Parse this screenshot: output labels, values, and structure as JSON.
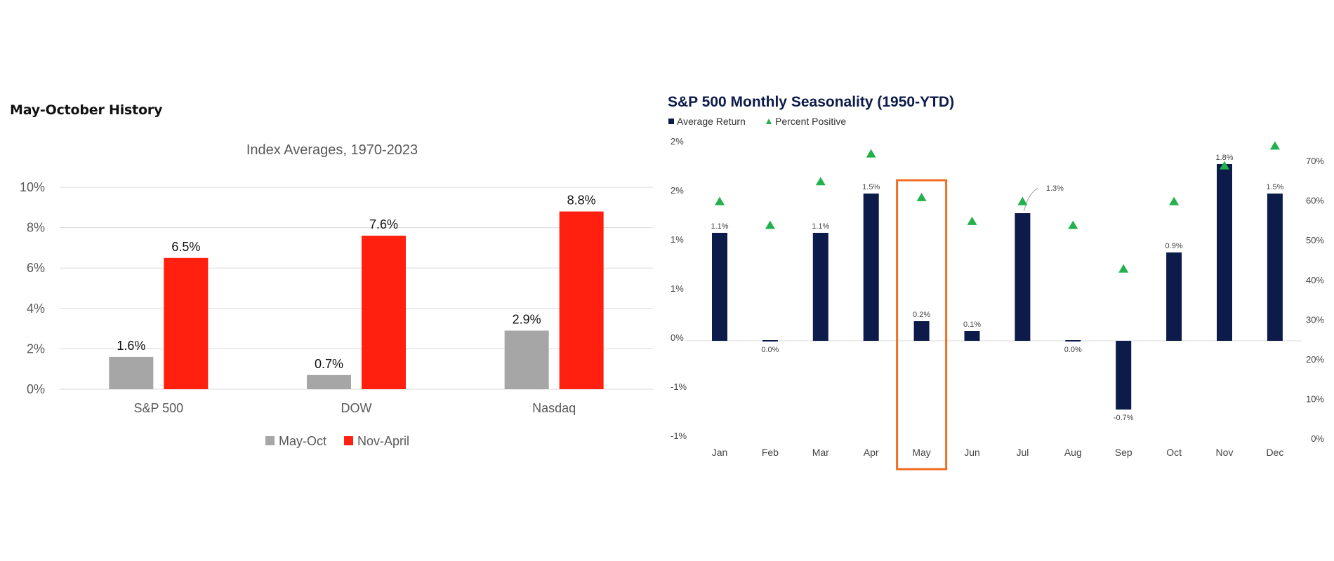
{
  "page": {
    "heading": "May-October History"
  },
  "chart_data": [
    {
      "type": "bar",
      "title": "Index Averages, 1970-2023",
      "categories": [
        "S&P 500",
        "DOW",
        "Nasdaq"
      ],
      "series": [
        {
          "name": "May-Oct",
          "values": [
            1.6,
            0.7,
            2.9
          ],
          "labels": [
            "1.6%",
            "0.7%",
            "2.9%"
          ],
          "color": "#a6a6a6"
        },
        {
          "name": "Nov-April",
          "values": [
            6.5,
            7.6,
            8.8
          ],
          "labels": [
            "6.5%",
            "7.6%",
            "8.8%"
          ],
          "color": "#ff2010"
        }
      ],
      "ylim": [
        0,
        10
      ],
      "yticks": [
        0,
        2,
        4,
        6,
        8,
        10
      ],
      "ytick_labels": [
        "0%",
        "2%",
        "4%",
        "6%",
        "8%",
        "10%"
      ],
      "grid": true,
      "legend_position": "bottom",
      "xlabel": "",
      "ylabel": ""
    },
    {
      "type": "bar",
      "title": "S&P 500 Monthly Seasonality (1950-YTD)",
      "categories": [
        "Jan",
        "Feb",
        "Mar",
        "Apr",
        "May",
        "Jun",
        "Jul",
        "Aug",
        "Sep",
        "Oct",
        "Nov",
        "Dec"
      ],
      "series": [
        {
          "name": "Average Return",
          "kind": "bar",
          "axis": "left",
          "color": "#0d1b4a",
          "values": [
            1.1,
            0.0,
            1.1,
            1.5,
            0.2,
            0.1,
            1.3,
            0.0,
            -0.7,
            0.9,
            1.8,
            1.5
          ],
          "labels": [
            "1.1%",
            "0.0%",
            "1.1%",
            "1.5%",
            "0.2%",
            "0.1%",
            "1.3%",
            "0.0%",
            "-0.7%",
            "0.9%",
            "1.8%",
            "1.5%"
          ]
        },
        {
          "name": "Percent Positive",
          "kind": "marker",
          "axis": "right",
          "color": "#22b14c",
          "values": [
            60,
            54,
            65,
            72,
            61,
            55,
            60,
            54,
            43,
            60,
            69,
            74
          ]
        }
      ],
      "left_axis": {
        "ylim": [
          -1.0,
          2.0
        ],
        "tick_labels": [
          "2%",
          "2%",
          "1%",
          "1%",
          "0%",
          "-1%",
          "-1%"
        ]
      },
      "right_axis": {
        "ylim": [
          0,
          70
        ],
        "tick_labels": [
          "70%",
          "60%",
          "50%",
          "40%",
          "30%",
          "20%",
          "10%",
          "0%"
        ]
      },
      "highlight": {
        "category": "May",
        "color": "#f26d21"
      },
      "legend_position": "top-left",
      "xlabel": "",
      "ylabel": ""
    }
  ]
}
